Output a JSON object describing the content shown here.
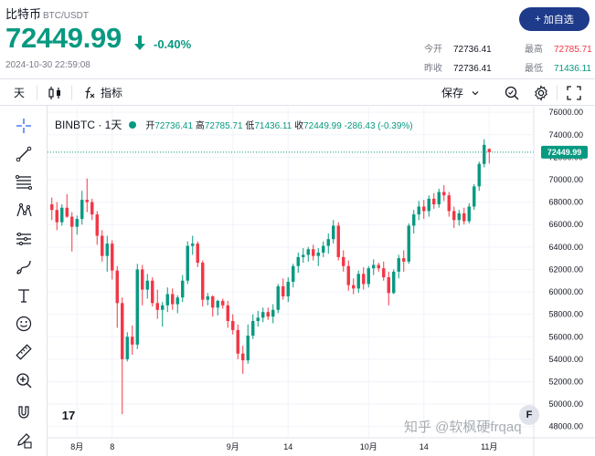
{
  "header": {
    "name": "比特币",
    "pair": "BTC/USDT",
    "price": "72449.99",
    "change": "-0.40%",
    "timestamp": "2024-10-30 22:59:08",
    "add_button": "加自选",
    "add_icon": "plus-icon",
    "stats": {
      "open_label": "今开",
      "open": "72736.41",
      "high_label": "最高",
      "high": "72785.71",
      "prev_label": "昨收",
      "prev": "72736.41",
      "low_label": "最低",
      "low": "71436.11"
    },
    "colors": {
      "up": "#089981",
      "down": "#f23645",
      "brand": "#1e3a8a"
    }
  },
  "toolbar": {
    "interval": "天",
    "indicators": "指标",
    "save": "保存"
  },
  "chart_data": {
    "type": "candlestick",
    "title": "BINBTC · 1天",
    "legend": {
      "open_label": "开",
      "open": "72736.41",
      "high_label": "高",
      "high": "72785.71",
      "low_label": "低",
      "low": "71436.11",
      "close_label": "收",
      "close": "72449.99",
      "change": "-286.43",
      "change_pct": "(-0.39%)"
    },
    "last_price": "72449.99",
    "ylim": [
      47000,
      76500
    ],
    "y_ticks": [
      "76000.00",
      "74000.00",
      "72000.00",
      "70000.00",
      "68000.00",
      "66000.00",
      "64000.00",
      "62000.00",
      "60000.00",
      "58000.00",
      "56000.00",
      "54000.00",
      "52000.00",
      "50000.00",
      "48000.00"
    ],
    "x_ticks": [
      "8月",
      "8",
      "9月",
      "14",
      "10月",
      "14",
      "11月"
    ],
    "x_tick_index": [
      5,
      12,
      36,
      47,
      63,
      74,
      87
    ],
    "candles": [
      [
        67800,
        68400,
        66400,
        67300
      ],
      [
        67300,
        68000,
        65500,
        66200
      ],
      [
        66200,
        67800,
        65900,
        67500
      ],
      [
        67500,
        68700,
        66600,
        66700
      ],
      [
        66700,
        67100,
        63600,
        65800
      ],
      [
        65800,
        66800,
        65100,
        66500
      ],
      [
        66500,
        69000,
        66000,
        68200
      ],
      [
        68200,
        70100,
        67100,
        68000
      ],
      [
        68000,
        68300,
        66400,
        66900
      ],
      [
        66900,
        67200,
        64200,
        65000
      ],
      [
        65000,
        65500,
        62700,
        63200
      ],
      [
        63200,
        65000,
        61800,
        64300
      ],
      [
        64300,
        64600,
        61100,
        61900
      ],
      [
        61900,
        62300,
        56800,
        59000
      ],
      [
        59000,
        59500,
        49100,
        54000
      ],
      [
        54000,
        56400,
        53800,
        56000
      ],
      [
        56000,
        57000,
        54400,
        55300
      ],
      [
        55300,
        62500,
        54900,
        62000
      ],
      [
        62000,
        62400,
        58800,
        60200
      ],
      [
        60200,
        61600,
        59400,
        61000
      ],
      [
        61000,
        61300,
        58700,
        59000
      ],
      [
        59000,
        60200,
        57600,
        58400
      ],
      [
        58400,
        59100,
        56900,
        58800
      ],
      [
        58800,
        60400,
        58200,
        59800
      ],
      [
        59800,
        60300,
        58400,
        58900
      ],
      [
        58900,
        59700,
        58100,
        59500
      ],
      [
        59500,
        61500,
        59100,
        61000
      ],
      [
        61000,
        64500,
        60700,
        64100
      ],
      [
        64100,
        65000,
        63300,
        64300
      ],
      [
        64300,
        64500,
        62200,
        62600
      ],
      [
        62600,
        62800,
        58700,
        59300
      ],
      [
        59300,
        59900,
        58800,
        59600
      ],
      [
        59600,
        59700,
        57800,
        58600
      ],
      [
        58600,
        59300,
        57900,
        59200
      ],
      [
        59200,
        59400,
        58500,
        58800
      ],
      [
        58800,
        59200,
        56800,
        57400
      ],
      [
        57400,
        58000,
        56200,
        56600
      ],
      [
        56600,
        57100,
        54000,
        54500
      ],
      [
        54500,
        55200,
        52700,
        53900
      ],
      [
        53900,
        57100,
        53600,
        56100
      ],
      [
        56100,
        58000,
        55800,
        57400
      ],
      [
        57400,
        58300,
        56900,
        57700
      ],
      [
        57700,
        58600,
        57300,
        58200
      ],
      [
        58200,
        58600,
        57500,
        57800
      ],
      [
        57800,
        58900,
        57200,
        58400
      ],
      [
        58400,
        60700,
        58100,
        60500
      ],
      [
        60500,
        61200,
        59300,
        59600
      ],
      [
        59600,
        61300,
        59100,
        60900
      ],
      [
        60900,
        62500,
        60400,
        62300
      ],
      [
        62300,
        63500,
        61700,
        63100
      ],
      [
        63100,
        63900,
        62600,
        63300
      ],
      [
        63300,
        64000,
        62700,
        63800
      ],
      [
        63800,
        64200,
        62800,
        63200
      ],
      [
        63200,
        63900,
        62300,
        63500
      ],
      [
        63500,
        64500,
        63100,
        64100
      ],
      [
        64100,
        65200,
        63400,
        64700
      ],
      [
        64700,
        66400,
        64300,
        65900
      ],
      [
        65900,
        66200,
        62800,
        63100
      ],
      [
        63100,
        63700,
        61800,
        62300
      ],
      [
        62300,
        62800,
        60100,
        60600
      ],
      [
        60600,
        61200,
        59800,
        60300
      ],
      [
        60300,
        61900,
        59900,
        61600
      ],
      [
        61600,
        62200,
        60200,
        60700
      ],
      [
        60700,
        62300,
        60400,
        62100
      ],
      [
        62100,
        62900,
        61500,
        62400
      ],
      [
        62400,
        62600,
        61800,
        62100
      ],
      [
        62100,
        62700,
        61000,
        61300
      ],
      [
        61300,
        61800,
        58800,
        59900
      ],
      [
        59900,
        62000,
        59800,
        61800
      ],
      [
        61800,
        63300,
        61200,
        63000
      ],
      [
        63000,
        63700,
        61800,
        62700
      ],
      [
        62700,
        66100,
        62500,
        65900
      ],
      [
        65900,
        67300,
        65200,
        66900
      ],
      [
        66900,
        68100,
        66400,
        67600
      ],
      [
        67600,
        68200,
        66500,
        67200
      ],
      [
        67200,
        68600,
        66700,
        68300
      ],
      [
        68300,
        68800,
        67400,
        67800
      ],
      [
        67800,
        69200,
        67500,
        68900
      ],
      [
        68900,
        69500,
        68100,
        68600
      ],
      [
        68600,
        68900,
        66700,
        67200
      ],
      [
        67200,
        67600,
        65700,
        66400
      ],
      [
        66400,
        67300,
        65900,
        67000
      ],
      [
        67000,
        67500,
        66000,
        66300
      ],
      [
        66300,
        67900,
        66100,
        67600
      ],
      [
        67600,
        69600,
        67300,
        69400
      ],
      [
        69400,
        71600,
        69000,
        71400
      ],
      [
        71400,
        73600,
        71100,
        73100
      ],
      [
        72736,
        72786,
        71436,
        72450
      ]
    ]
  },
  "watermark": "知乎 @软枫硬frqaq",
  "tv_logo": "17",
  "f_button": "F"
}
